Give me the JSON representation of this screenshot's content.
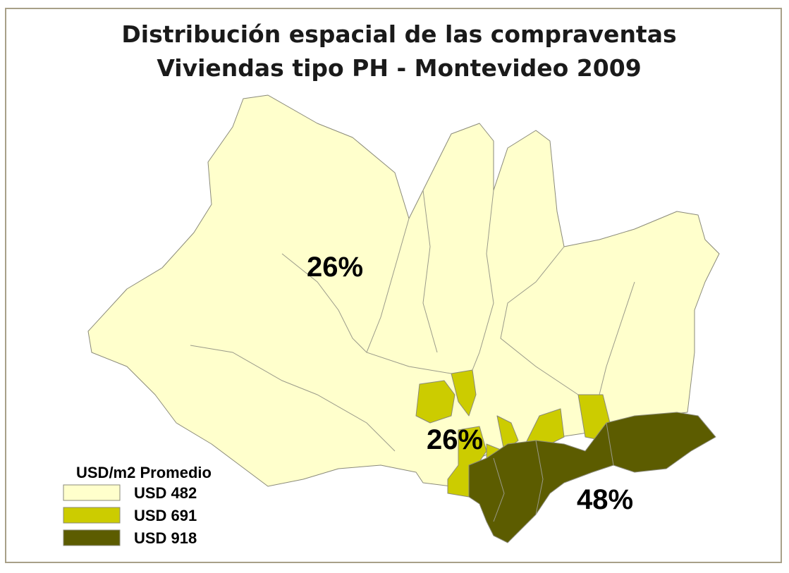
{
  "title": [
    "Distribución espacial de las compraventas",
    "Viviendas tipo PH - Montevideo 2009"
  ],
  "legend": {
    "title": "USD/m2 Promedio",
    "items": [
      {
        "label": "USD 482",
        "color": "#ffffcc"
      },
      {
        "label": "USD 691",
        "color": "#cccc00"
      },
      {
        "label": "USD 918",
        "color": "#5c5c00"
      }
    ]
  },
  "zones": [
    {
      "label": "26%"
    },
    {
      "label": "26%"
    },
    {
      "label": "48%"
    }
  ]
}
